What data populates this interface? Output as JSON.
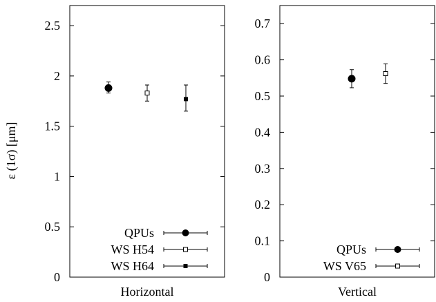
{
  "chart_data": [
    {
      "type": "scatter",
      "panel": "horizontal",
      "title": "",
      "xlabel": "Horizontal",
      "ylabel": "ε (1σ) [μm]",
      "ylim": [
        0,
        2.7
      ],
      "yticks": [
        "0",
        "0.5",
        "1",
        "1.5",
        "2",
        "2.5"
      ],
      "yticks_values": [
        0,
        0.5,
        1,
        1.5,
        2,
        2.5
      ],
      "grid": false,
      "legend_position": "bottom-right",
      "series": [
        {
          "name": "QPUs",
          "marker": "filled-circle",
          "value": 1.88,
          "error_low": 1.83,
          "error_high": 1.94
        },
        {
          "name": "WS H54",
          "marker": "open-square",
          "value": 1.83,
          "error_low": 1.75,
          "error_high": 1.91
        },
        {
          "name": "WS H64",
          "marker": "filled-square",
          "value": 1.77,
          "error_low": 1.65,
          "error_high": 1.91
        }
      ]
    },
    {
      "type": "scatter",
      "panel": "vertical",
      "title": "",
      "xlabel": "Vertical",
      "ylabel": "",
      "ylim": [
        0,
        0.75
      ],
      "yticks": [
        "0",
        "0.1",
        "0.2",
        "0.3",
        "0.4",
        "0.5",
        "0.6",
        "0.7"
      ],
      "yticks_values": [
        0,
        0.1,
        0.2,
        0.3,
        0.4,
        0.5,
        0.6,
        0.7
      ],
      "grid": false,
      "legend_position": "bottom-right",
      "series": [
        {
          "name": "QPUs",
          "marker": "filled-circle",
          "value": 0.548,
          "error_low": 0.523,
          "error_high": 0.573
        },
        {
          "name": "WS V65",
          "marker": "open-square",
          "value": 0.562,
          "error_low": 0.535,
          "error_high": 0.589
        }
      ]
    }
  ]
}
